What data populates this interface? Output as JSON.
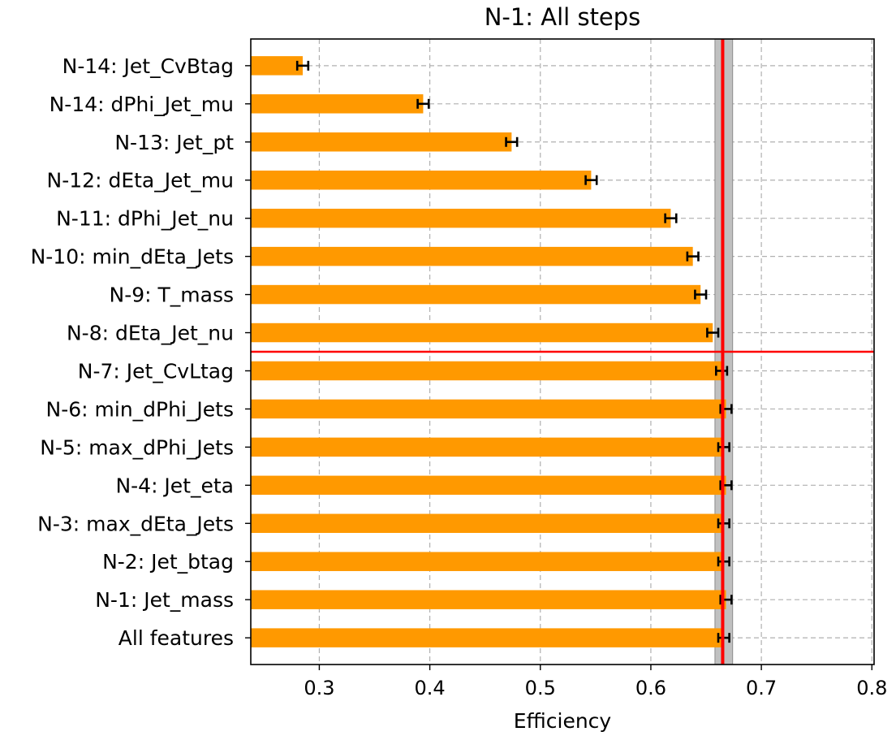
{
  "chart_data": {
    "type": "bar",
    "orientation": "horizontal",
    "title": "N-1: All steps",
    "xlabel": "Efficiency",
    "ylabel": "",
    "xlim": [
      0.238,
      0.802
    ],
    "xticks": [
      "0.3",
      "0.4",
      "0.5",
      "0.6",
      "0.7",
      "0.8"
    ],
    "grid": true,
    "categories": [
      "All features",
      "N-1: Jet_mass",
      "N-2: Jet_btag",
      "N-3: max_dEta_Jets",
      "N-4: Jet_eta",
      "N-5: max_dPhi_Jets",
      "N-6: min_dPhi_Jets",
      "N-7: Jet_CvLtag",
      "N-8: dEta_Jet_nu",
      "N-9: T_mass",
      "N-10: min_dEta_Jets",
      "N-11: dPhi_Jet_nu",
      "N-12: dEta_Jet_mu",
      "N-13: Jet_pt",
      "N-14: dPhi_Jet_mu",
      "N-14: Jet_CvBtag"
    ],
    "values": [
      0.666,
      0.668,
      0.666,
      0.666,
      0.668,
      0.666,
      0.668,
      0.664,
      0.656,
      0.645,
      0.638,
      0.618,
      0.546,
      0.474,
      0.394,
      0.285
    ],
    "errors": [
      0.005,
      0.005,
      0.005,
      0.005,
      0.005,
      0.005,
      0.005,
      0.005,
      0.005,
      0.005,
      0.005,
      0.005,
      0.005,
      0.005,
      0.005,
      0.005
    ],
    "reference_line": 0.665,
    "reference_band": [
      0.658,
      0.674
    ],
    "separator_after_category": "N-7: Jet_CvLtag",
    "colors": {
      "bar": "#ff9900",
      "error": "#000000",
      "reference_line": "#ff0000",
      "band": "#c0c0c0",
      "grid": "#b0b0b0"
    }
  }
}
